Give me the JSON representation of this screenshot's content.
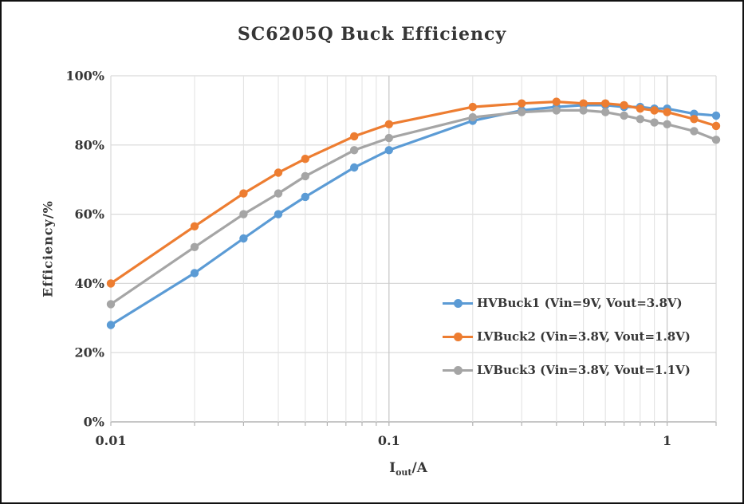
{
  "chart": {
    "title": "SC6205Q Buck Efficiency",
    "y_axis": {
      "title": "Efficiency/%",
      "tick_values": [
        0,
        20,
        40,
        60,
        80,
        100
      ],
      "tick_labels": [
        "0%",
        "20%",
        "40%",
        "60%",
        "80%",
        "100%"
      ]
    },
    "x_axis": {
      "title_symbol": "I",
      "title_subscript": "out",
      "title_unit": "/A",
      "tick_values": [
        0.01,
        0.1,
        1
      ],
      "tick_labels": [
        "0.01",
        "0.1",
        "1"
      ]
    }
  },
  "chart_data": {
    "type": "line",
    "title": "SC6205Q Buck Efficiency",
    "xlabel": "Iout/A",
    "ylabel": "Efficiency/%",
    "x_scale": "log",
    "xlim": [
      0.01,
      1.5
    ],
    "ylim": [
      0,
      100
    ],
    "grid": true,
    "legend_position": "inside-right-middle",
    "x": [
      0.01,
      0.02,
      0.03,
      0.04,
      0.05,
      0.075,
      0.1,
      0.2,
      0.3,
      0.4,
      0.5,
      0.6,
      0.7,
      0.8,
      0.9,
      1,
      1.25,
      1.5
    ],
    "series": [
      {
        "name": "HVBuck1 (Vin=9V, Vout=3.8V)",
        "color": "#5B9BD5",
        "marker": "circle",
        "values": [
          28,
          43,
          53,
          60,
          65,
          73.5,
          78.5,
          87,
          90,
          91,
          91.5,
          91.5,
          91,
          91,
          90.5,
          90.5,
          89,
          88.5
        ]
      },
      {
        "name": "LVBuck2 (Vin=3.8V, Vout=1.8V)",
        "color": "#ED7D31",
        "marker": "circle",
        "values": [
          40,
          56.5,
          66,
          72,
          76,
          82.5,
          86,
          91,
          92,
          92.5,
          92,
          92,
          91.5,
          90.5,
          90,
          89.5,
          87.5,
          85.5
        ]
      },
      {
        "name": "LVBuck3 (Vin=3.8V, Vout=1.1V)",
        "color": "#A5A5A5",
        "marker": "circle",
        "values": [
          34,
          50.5,
          60,
          66,
          71,
          78.5,
          82,
          88,
          89.5,
          90,
          90,
          89.5,
          88.5,
          87.5,
          86.5,
          86,
          84,
          81.5
        ]
      }
    ]
  }
}
